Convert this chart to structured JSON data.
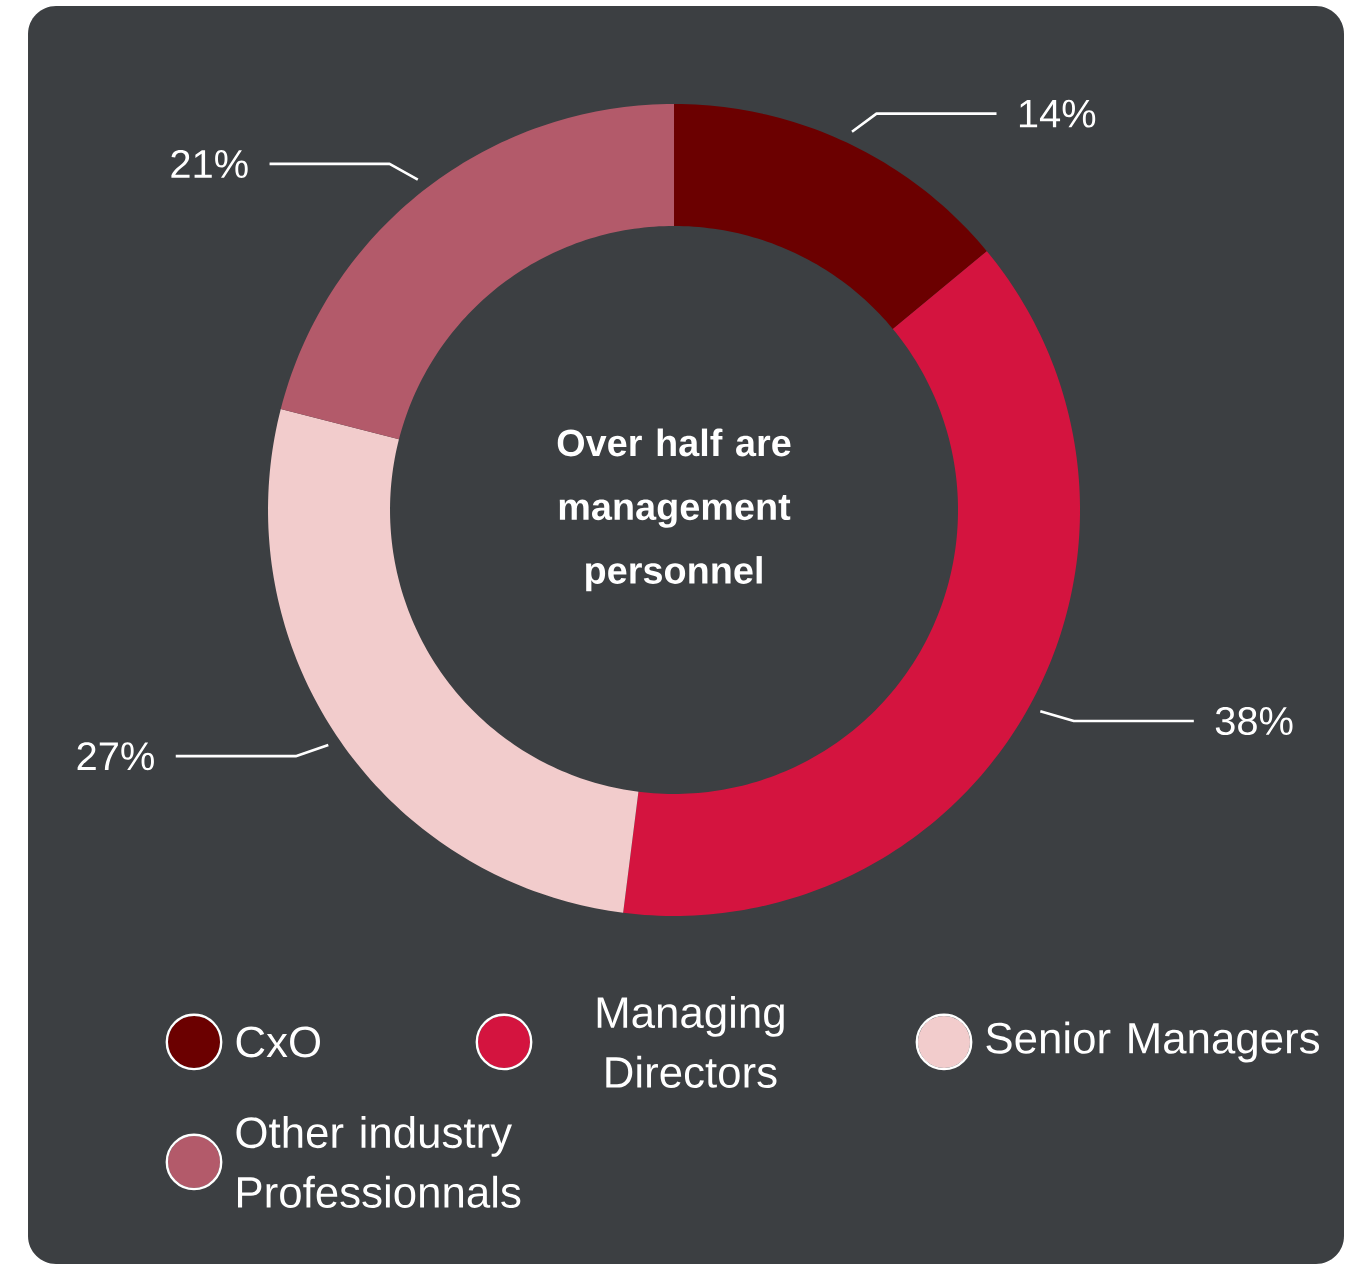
{
  "chart_data": {
    "type": "donut",
    "title": "Over half are management personnel",
    "categories": [
      "CxO",
      "Managing Directors",
      "Senior Managers",
      "Other industry Professionnals"
    ],
    "values": [
      14,
      38,
      27,
      21
    ],
    "value_labels": [
      "14%",
      "38%",
      "27%",
      "21%"
    ],
    "colors": [
      "#6b0000",
      "#d4143f",
      "#f2cccc",
      "#b35a6a"
    ],
    "legend": "bottom"
  }
}
